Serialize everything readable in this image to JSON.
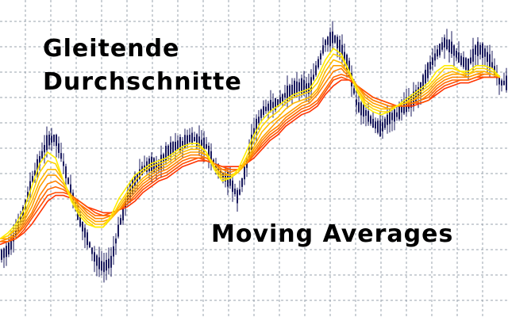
{
  "labels": {
    "title_line1": "Gleitende",
    "title_line2": "Durchschnitte",
    "subtitle": "Moving Averages"
  },
  "colors": {
    "background": "#ffffff",
    "grid": "#9aa3ad",
    "candle": "#1a1a5e",
    "ma_fast": "#ffee00",
    "ma_slow": "#ff3300"
  },
  "chart_data": {
    "type": "line",
    "title": "",
    "xlabel": "",
    "ylabel": "",
    "grid": true,
    "legend": "none",
    "ylim": [
      0,
      100
    ],
    "x": [
      0,
      10,
      20,
      30,
      40,
      50,
      60,
      70,
      80,
      90,
      100,
      110,
      120,
      130,
      140,
      150,
      160,
      170,
      180,
      190,
      200,
      210,
      220,
      230,
      240,
      250,
      260,
      270,
      280,
      290,
      300,
      310,
      320,
      330,
      340,
      350,
      360,
      370,
      380,
      390,
      400,
      410,
      420,
      430,
      440,
      450,
      460,
      470,
      480,
      490,
      500,
      510,
      520,
      530,
      540,
      550,
      560,
      570,
      580,
      590,
      600,
      610,
      620,
      630
    ],
    "price": [
      14,
      16,
      22,
      30,
      40,
      47,
      54,
      55,
      46,
      36,
      27,
      20,
      13,
      10,
      12,
      24,
      34,
      40,
      44,
      46,
      45,
      50,
      52,
      53,
      55,
      54,
      52,
      46,
      42,
      40,
      34,
      45,
      57,
      64,
      66,
      67,
      70,
      72,
      73,
      72,
      80,
      88,
      90,
      86,
      79,
      66,
      64,
      60,
      58,
      62,
      63,
      66,
      68,
      72,
      79,
      84,
      88,
      86,
      82,
      80,
      86,
      85,
      80,
      74
    ],
    "series": [
      {
        "values": [
          20,
          22,
          25,
          30,
          38,
          46,
          50,
          48,
          40,
          33,
          28,
          25,
          24,
          24,
          28,
          34,
          38,
          42,
          44,
          46,
          47,
          48,
          50,
          52,
          53,
          53,
          50,
          44,
          40,
          41,
          44,
          50,
          56,
          61,
          64,
          66,
          68,
          70,
          71,
          72,
          76,
          82,
          86,
          84,
          78,
          71,
          66,
          64,
          63,
          64,
          66,
          68,
          70,
          72,
          74,
          78,
          80,
          80,
          78,
          78,
          80,
          80,
          79,
          76
        ]
      },
      {
        "values": [
          20,
          21,
          24,
          28,
          35,
          43,
          47,
          46,
          40,
          34,
          29,
          26,
          24,
          24,
          27,
          32,
          36,
          40,
          43,
          45,
          46,
          47,
          49,
          51,
          52,
          52,
          50,
          45,
          41,
          41,
          43,
          48,
          54,
          59,
          62,
          64,
          67,
          69,
          70,
          71,
          74,
          80,
          84,
          83,
          78,
          72,
          67,
          65,
          64,
          64,
          66,
          67,
          69,
          71,
          73,
          76,
          79,
          79,
          78,
          77,
          79,
          79,
          78,
          76
        ]
      },
      {
        "values": [
          20,
          21,
          23,
          27,
          33,
          40,
          44,
          44,
          40,
          34,
          30,
          27,
          25,
          25,
          27,
          31,
          35,
          38,
          41,
          43,
          45,
          46,
          48,
          50,
          51,
          51,
          49,
          45,
          42,
          42,
          43,
          47,
          52,
          57,
          60,
          62,
          65,
          67,
          68,
          69,
          72,
          78,
          82,
          81,
          77,
          72,
          68,
          66,
          65,
          65,
          66,
          67,
          68,
          70,
          72,
          75,
          77,
          78,
          77,
          77,
          78,
          78,
          77,
          76
        ]
      },
      {
        "values": [
          20,
          20,
          22,
          26,
          31,
          38,
          42,
          42,
          39,
          35,
          31,
          28,
          26,
          26,
          27,
          30,
          34,
          37,
          40,
          42,
          44,
          45,
          47,
          49,
          50,
          50,
          49,
          46,
          43,
          42,
          43,
          46,
          51,
          55,
          58,
          61,
          63,
          65,
          67,
          68,
          71,
          76,
          80,
          80,
          77,
          73,
          69,
          67,
          66,
          65,
          66,
          67,
          68,
          69,
          71,
          74,
          76,
          77,
          77,
          76,
          77,
          78,
          77,
          76
        ]
      },
      {
        "values": [
          19,
          20,
          21,
          25,
          29,
          35,
          39,
          40,
          38,
          35,
          32,
          29,
          27,
          27,
          28,
          30,
          33,
          36,
          39,
          41,
          43,
          44,
          46,
          48,
          49,
          49,
          48,
          46,
          44,
          43,
          44,
          46,
          50,
          54,
          57,
          59,
          62,
          64,
          66,
          67,
          70,
          74,
          78,
          79,
          76,
          73,
          70,
          68,
          67,
          66,
          66,
          67,
          67,
          68,
          70,
          73,
          75,
          76,
          76,
          76,
          77,
          77,
          77,
          76
        ]
      },
      {
        "values": [
          19,
          19,
          21,
          24,
          28,
          33,
          37,
          38,
          37,
          35,
          32,
          30,
          28,
          28,
          28,
          30,
          32,
          35,
          38,
          40,
          42,
          43,
          45,
          47,
          48,
          48,
          48,
          46,
          44,
          44,
          44,
          46,
          49,
          53,
          56,
          58,
          61,
          63,
          65,
          66,
          68,
          72,
          76,
          77,
          76,
          73,
          70,
          68,
          67,
          66,
          66,
          66,
          67,
          68,
          69,
          72,
          74,
          75,
          75,
          75,
          76,
          77,
          77,
          76
        ]
      },
      {
        "values": [
          19,
          19,
          20,
          23,
          27,
          31,
          35,
          36,
          36,
          35,
          33,
          31,
          29,
          28,
          29,
          30,
          32,
          34,
          37,
          39,
          41,
          42,
          44,
          46,
          47,
          48,
          47,
          46,
          45,
          44,
          44,
          46,
          49,
          52,
          55,
          57,
          60,
          62,
          64,
          65,
          67,
          71,
          75,
          76,
          75,
          73,
          71,
          69,
          68,
          67,
          66,
          66,
          67,
          67,
          68,
          71,
          73,
          74,
          75,
          75,
          76,
          76,
          76,
          76
        ]
      },
      {
        "values": [
          18,
          19,
          20,
          22,
          25,
          29,
          33,
          35,
          35,
          34,
          33,
          31,
          30,
          29,
          29,
          30,
          31,
          33,
          36,
          38,
          40,
          41,
          43,
          45,
          46,
          47,
          47,
          46,
          45,
          45,
          45,
          46,
          48,
          51,
          54,
          56,
          59,
          61,
          63,
          64,
          66,
          70,
          73,
          75,
          75,
          73,
          71,
          69,
          68,
          67,
          66,
          66,
          66,
          67,
          68,
          70,
          72,
          73,
          74,
          74,
          75,
          76,
          76,
          76
        ]
      }
    ]
  }
}
